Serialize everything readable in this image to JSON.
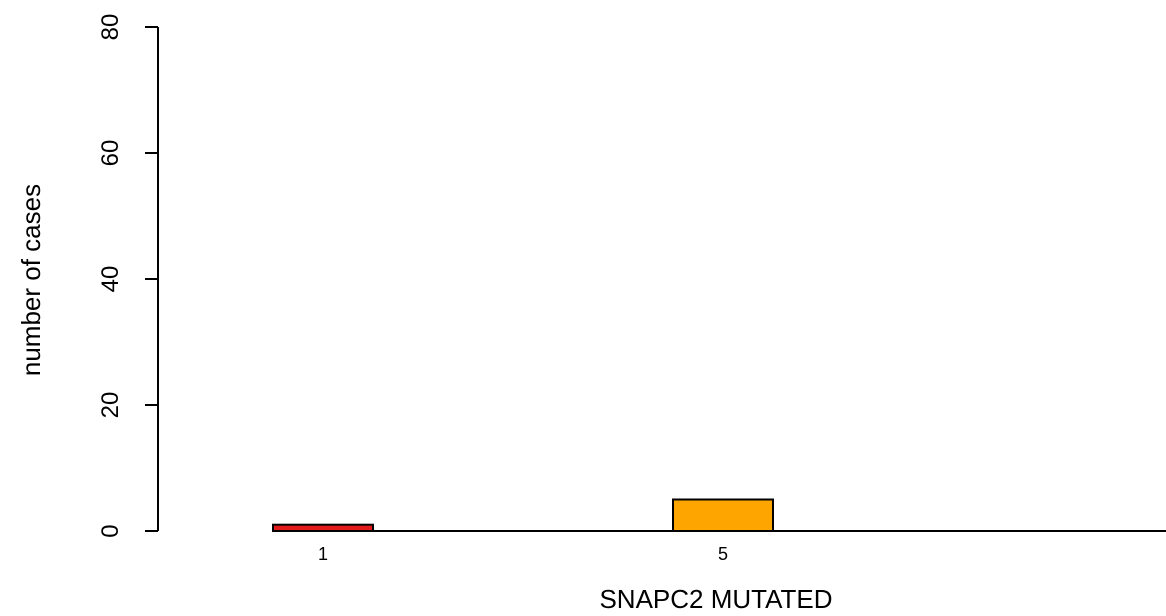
{
  "chart_data": {
    "type": "bar",
    "title": "",
    "xlabel": "SNAPC2 MUTATED",
    "ylabel": "number of cases",
    "categories": [
      "1",
      "5"
    ],
    "values": [
      1,
      5
    ],
    "bar_labels": [
      "1",
      "5"
    ],
    "colors": [
      "#e31a1c",
      "#ffa500"
    ],
    "ylim": [
      0,
      80
    ],
    "yticks": [
      0,
      20,
      40,
      60,
      80
    ],
    "grid": false
  }
}
